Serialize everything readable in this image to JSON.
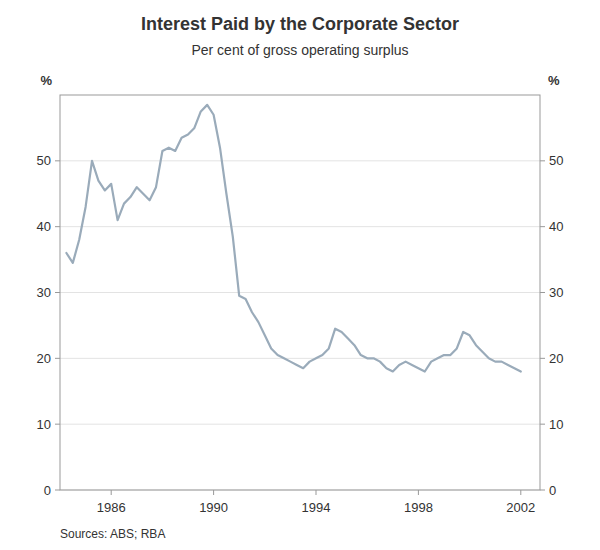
{
  "chart_data": {
    "type": "line",
    "title": "Interest Paid by the Corporate Sector",
    "subtitle": "Per cent of gross operating surplus",
    "ylabel": "%",
    "y2label": "%",
    "source": "Sources: ABS; RBA",
    "color": "#9aabba",
    "grid": true,
    "xlim": [
      1984.0,
      2002.75
    ],
    "xticks": [
      1986,
      1990,
      1994,
      1998,
      2002
    ],
    "ylim": [
      0,
      60
    ],
    "yticks": [
      0,
      10,
      20,
      30,
      40,
      50
    ],
    "y2lim": [
      0,
      60
    ],
    "y2ticks": [
      0,
      10,
      20,
      30,
      40,
      50
    ],
    "x": [
      1984.25,
      1984.5,
      1984.75,
      1985.0,
      1985.25,
      1985.5,
      1985.75,
      1986.0,
      1986.25,
      1986.5,
      1986.75,
      1987.0,
      1987.25,
      1987.5,
      1987.75,
      1988.0,
      1988.25,
      1988.5,
      1988.75,
      1989.0,
      1989.25,
      1989.5,
      1989.75,
      1990.0,
      1990.25,
      1990.5,
      1990.75,
      1991.0,
      1991.25,
      1991.5,
      1991.75,
      1992.0,
      1992.25,
      1992.5,
      1992.75,
      1993.0,
      1993.25,
      1993.5,
      1993.75,
      1994.0,
      1994.25,
      1994.5,
      1994.75,
      1995.0,
      1995.25,
      1995.5,
      1995.75,
      1996.0,
      1996.25,
      1996.5,
      1996.75,
      1997.0,
      1997.25,
      1997.5,
      1997.75,
      1998.0,
      1998.25,
      1998.5,
      1998.75,
      1999.0,
      1999.25,
      1999.5,
      1999.75,
      2000.0,
      2000.25,
      2000.5,
      2000.75,
      2001.0,
      2001.25,
      2001.5,
      2001.75,
      2002.0
    ],
    "values": [
      36.0,
      34.5,
      38.0,
      43.0,
      50.0,
      47.0,
      45.5,
      46.5,
      41.0,
      43.5,
      44.5,
      46.0,
      45.0,
      44.0,
      46.0,
      51.5,
      52.0,
      51.5,
      53.5,
      54.0,
      55.0,
      57.5,
      58.5,
      57.0,
      52.0,
      45.0,
      38.5,
      29.5,
      29.0,
      27.0,
      25.5,
      23.5,
      21.5,
      20.5,
      20.0,
      19.5,
      19.0,
      18.5,
      19.5,
      20.0,
      20.5,
      21.5,
      24.5,
      24.0,
      23.0,
      22.0,
      20.5,
      20.0,
      20.0,
      19.5,
      18.5,
      18.0,
      19.0,
      19.5,
      19.0,
      18.5,
      18.0,
      19.5,
      20.0,
      20.5,
      20.5,
      21.5,
      24.0,
      23.5,
      22.0,
      21.0,
      20.0,
      19.5,
      19.5,
      19.0,
      18.5,
      18.0
    ]
  }
}
